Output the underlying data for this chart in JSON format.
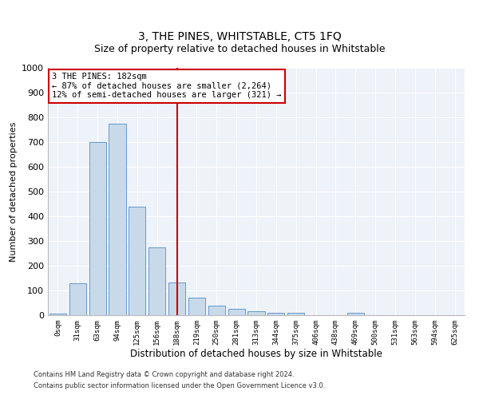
{
  "title": "3, THE PINES, WHITSTABLE, CT5 1FQ",
  "subtitle": "Size of property relative to detached houses in Whitstable",
  "xlabel": "Distribution of detached houses by size in Whitstable",
  "ylabel": "Number of detached properties",
  "bar_color": "#c8daea",
  "bar_edge_color": "#6699cc",
  "background_color": "#eef2f9",
  "grid_color": "#ffffff",
  "categories": [
    "0sqm",
    "31sqm",
    "63sqm",
    "94sqm",
    "125sqm",
    "156sqm",
    "188sqm",
    "219sqm",
    "250sqm",
    "281sqm",
    "313sqm",
    "344sqm",
    "375sqm",
    "406sqm",
    "438sqm",
    "469sqm",
    "500sqm",
    "531sqm",
    "563sqm",
    "594sqm",
    "625sqm"
  ],
  "values": [
    5,
    128,
    700,
    775,
    438,
    275,
    133,
    70,
    40,
    25,
    15,
    10,
    10,
    0,
    0,
    10,
    0,
    0,
    0,
    0,
    0
  ],
  "ylim": [
    0,
    1000
  ],
  "yticks": [
    0,
    100,
    200,
    300,
    400,
    500,
    600,
    700,
    800,
    900,
    1000
  ],
  "property_line_x": 6.0,
  "property_label": "3 THE PINES: 182sqm",
  "annotation_line1": "← 87% of detached houses are smaller (2,264)",
  "annotation_line2": "12% of semi-detached houses are larger (321) →",
  "annotation_box_color": "#ffffff",
  "annotation_box_edge": "#cc0000",
  "property_line_color": "#cc0000",
  "footer_line1": "Contains HM Land Registry data © Crown copyright and database right 2024.",
  "footer_line2": "Contains public sector information licensed under the Open Government Licence v3.0."
}
